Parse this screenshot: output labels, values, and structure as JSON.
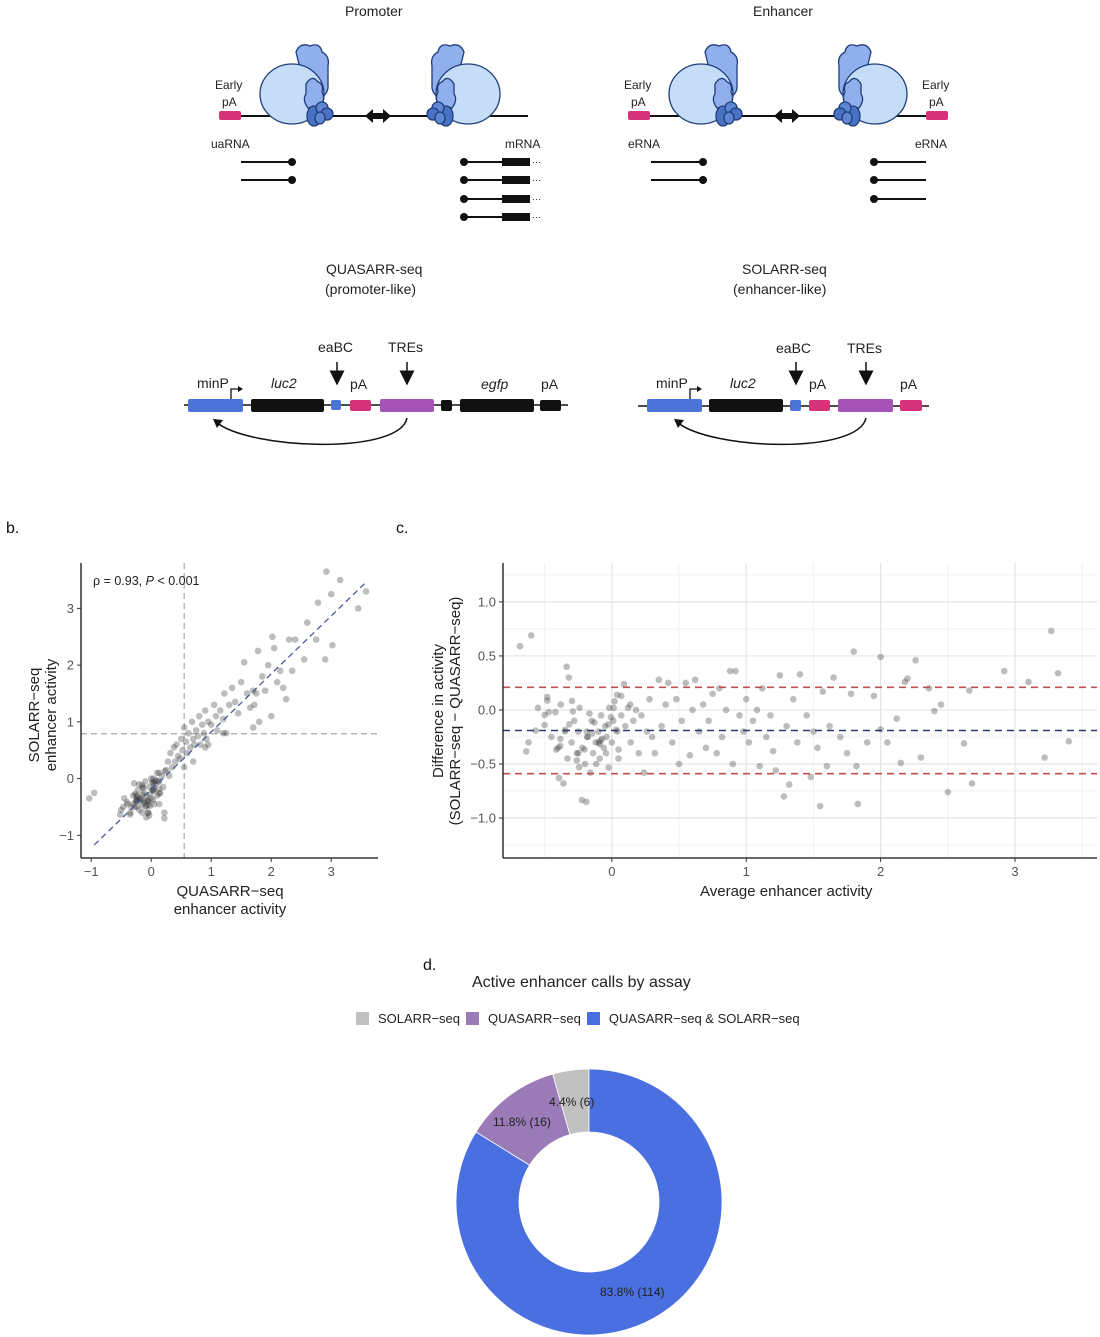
{
  "diagram": {
    "promoter": {
      "title": "Promoter",
      "early_pA": [
        "Early",
        "pA"
      ],
      "left_rna": "uaRNA",
      "right_rna": "mRNA"
    },
    "enhancer": {
      "title": "Enhancer",
      "early_pA": [
        "Early",
        "pA"
      ],
      "left_rna": "eRNA",
      "right_rna": "eRNA"
    },
    "quasarr": {
      "title": "QUASARR-seq",
      "subtitle": "(promoter-like)",
      "labels": {
        "minP": "minP",
        "luc2": "luc2",
        "eaBC": "eaBC",
        "pA1": "pA",
        "TREs": "TREs",
        "egfp": "egfp",
        "pA2": "pA"
      }
    },
    "solarr": {
      "title": "SOLARR-seq",
      "subtitle": "(enhancer-like)",
      "labels": {
        "minP": "minP",
        "luc2": "luc2",
        "eaBC": "eaBC",
        "pA1": "pA",
        "TREs": "TREs",
        "pA2": "pA"
      }
    },
    "colors": {
      "polymerase_light": "#c5ddf7",
      "polymerase_mid": "#8fb0ec",
      "polymerase_dark": "#4a72c4",
      "pA": "#d6337a",
      "minP": "#4c74d8",
      "TREs": "#a653b8",
      "eaBC": "#4c74d8",
      "gene": "#111111"
    }
  },
  "panel_labels": {
    "b": "b.",
    "c": "c.",
    "d": "d."
  },
  "chart_data": [
    {
      "id": "b",
      "type": "scatter",
      "title": "",
      "annotation": {
        "rho": "ρ = 0.93, ",
        "p_italic": "P",
        "p_rest": " < 0.001"
      },
      "xlabel": [
        "QUASARR−seq",
        "enhancer activity"
      ],
      "ylabel": [
        "SOLARR−seq",
        "enhancer activity"
      ],
      "xlim": [
        -1.17,
        3.78
      ],
      "ylim": [
        -1.4,
        3.8
      ],
      "xticks": [
        -1,
        0,
        1,
        2,
        3
      ],
      "xtick_labels": [
        "−1",
        "0",
        "1",
        "2",
        "3"
      ],
      "yticks": [
        -1,
        0,
        1,
        2,
        3
      ],
      "ytick_labels": [
        "−1",
        "0",
        "1",
        "2",
        "3"
      ],
      "vline": 0.55,
      "hline": 0.79,
      "fit_line": {
        "x": [
          -0.95,
          3.58
        ],
        "y": [
          -1.17,
          3.46
        ]
      },
      "point_color": "#333333",
      "fit_color": "#4a5a9a",
      "points": [
        [
          -0.95,
          -0.25
        ],
        [
          -0.5,
          -0.55
        ],
        [
          -0.45,
          -0.35
        ],
        [
          -0.4,
          -0.45
        ],
        [
          -0.35,
          -0.6
        ],
        [
          -0.3,
          -0.3
        ],
        [
          -0.28,
          -0.5
        ],
        [
          -0.25,
          -0.4
        ],
        [
          -0.22,
          -0.2
        ],
        [
          -0.2,
          -0.55
        ],
        [
          -0.18,
          -0.35
        ],
        [
          -0.15,
          -0.45
        ],
        [
          -0.12,
          -0.25
        ],
        [
          -0.1,
          -0.5
        ],
        [
          -0.08,
          -0.3
        ],
        [
          -0.05,
          -0.4
        ],
        [
          -0.03,
          -0.15
        ],
        [
          0.0,
          -0.35
        ],
        [
          0.02,
          -0.2
        ],
        [
          0.05,
          -0.45
        ],
        [
          0.07,
          -0.1
        ],
        [
          0.1,
          -0.3
        ],
        [
          0.12,
          -0.05
        ],
        [
          0.15,
          -0.25
        ],
        [
          0.18,
          0.05
        ],
        [
          0.2,
          -0.15
        ],
        [
          0.22,
          -0.6
        ],
        [
          -0.15,
          -0.6
        ],
        [
          -0.1,
          -0.05
        ],
        [
          -0.05,
          -0.6
        ],
        [
          0.0,
          0.0
        ],
        [
          0.05,
          -0.05
        ],
        [
          0.1,
          0.1
        ],
        [
          -0.2,
          -0.1
        ],
        [
          -0.25,
          -0.3
        ],
        [
          -0.3,
          -0.45
        ],
        [
          -0.12,
          -0.42
        ],
        [
          -0.08,
          -0.48
        ],
        [
          -0.02,
          -0.28
        ],
        [
          0.03,
          -0.38
        ],
        [
          0.25,
          0.15
        ],
        [
          0.28,
          0.3
        ],
        [
          0.3,
          0.05
        ],
        [
          0.32,
          0.45
        ],
        [
          0.35,
          0.2
        ],
        [
          0.38,
          0.55
        ],
        [
          0.4,
          0.3
        ],
        [
          0.42,
          0.6
        ],
        [
          0.45,
          0.4
        ],
        [
          0.48,
          0.35
        ],
        [
          0.5,
          0.7
        ],
        [
          0.52,
          0.5
        ],
        [
          0.55,
          0.9
        ],
        [
          0.55,
          0.2
        ],
        [
          0.58,
          0.65
        ],
        [
          0.6,
          0.45
        ],
        [
          0.62,
          0.8
        ],
        [
          0.65,
          0.55
        ],
        [
          0.68,
          1.0
        ],
        [
          0.7,
          0.7
        ],
        [
          0.72,
          0.6
        ],
        [
          0.75,
          0.85
        ],
        [
          0.78,
          0.75
        ],
        [
          0.8,
          1.1
        ],
        [
          0.82,
          0.6
        ],
        [
          0.85,
          0.95
        ],
        [
          0.88,
          0.8
        ],
        [
          0.9,
          1.2
        ],
        [
          0.92,
          0.7
        ],
        [
          0.95,
          1.0
        ],
        [
          1.0,
          0.95
        ],
        [
          1.05,
          1.3
        ],
        [
          1.08,
          1.1
        ],
        [
          1.1,
          0.85
        ],
        [
          1.15,
          1.2
        ],
        [
          1.2,
          1.05
        ],
        [
          1.22,
          1.5
        ],
        [
          1.25,
          0.8
        ],
        [
          1.3,
          1.3
        ],
        [
          1.35,
          1.6
        ],
        [
          1.4,
          1.35
        ],
        [
          1.45,
          1.15
        ],
        [
          1.5,
          1.7
        ],
        [
          1.55,
          2.05
        ],
        [
          1.6,
          1.5
        ],
        [
          1.65,
          1.25
        ],
        [
          1.7,
          1.55
        ],
        [
          1.72,
          1.3
        ],
        [
          1.75,
          1.5
        ],
        [
          1.78,
          2.25
        ],
        [
          1.8,
          1.0
        ],
        [
          1.85,
          1.8
        ],
        [
          1.9,
          1.55
        ],
        [
          1.95,
          2.0
        ],
        [
          2.0,
          1.1
        ],
        [
          2.02,
          2.5
        ],
        [
          2.05,
          2.3
        ],
        [
          2.1,
          1.7
        ],
        [
          2.15,
          1.9
        ],
        [
          2.2,
          1.6
        ],
        [
          2.25,
          1.4
        ],
        [
          2.3,
          2.45
        ],
        [
          2.35,
          1.9
        ],
        [
          2.4,
          2.45
        ],
        [
          2.55,
          2.1
        ],
        [
          2.6,
          2.75
        ],
        [
          2.75,
          2.45
        ],
        [
          2.78,
          3.1
        ],
        [
          2.9,
          2.1
        ],
        [
          2.92,
          3.65
        ],
        [
          3.0,
          3.25
        ],
        [
          3.02,
          2.35
        ],
        [
          3.15,
          3.5
        ],
        [
          3.45,
          3.0
        ],
        [
          3.58,
          3.3
        ],
        [
          1.7,
          0.9
        ],
        [
          1.2,
          0.8
        ],
        [
          0.7,
          0.3
        ],
        [
          0.9,
          0.55
        ],
        [
          0.95,
          0.6
        ]
      ]
    },
    {
      "id": "c",
      "type": "scatter",
      "title": "",
      "xlabel": "Average enhancer activity",
      "ylabel": [
        "Difference in activity",
        "(SOLARR−seq − QUASARR−seq)"
      ],
      "xlim": [
        -0.81,
        3.61
      ],
      "ylim": [
        -1.37,
        1.36
      ],
      "xticks": [
        0,
        1,
        2,
        3
      ],
      "xtick_labels": [
        "0",
        "1",
        "2",
        "3"
      ],
      "yticks": [
        -1.0,
        -0.5,
        0.0,
        0.5,
        1.0
      ],
      "ytick_labels": [
        "−1.0",
        "−0.5",
        "0.0",
        "0.5",
        "1.0"
      ],
      "grid": true,
      "hlines": [
        {
          "y": 0.21,
          "color": "#c0504d",
          "name": "upper-limit-line"
        },
        {
          "y": -0.19,
          "color": "#2b3a67",
          "name": "mean-difference-line"
        },
        {
          "y": -0.59,
          "color": "#c0504d",
          "name": "lower-limit-line"
        }
      ],
      "point_color": "#333333",
      "points": [
        [
          -0.6,
          0.69
        ],
        [
          -0.62,
          -0.3
        ],
        [
          -0.55,
          0.02
        ],
        [
          -0.5,
          -0.14
        ],
        [
          -0.48,
          0.12
        ],
        [
          -0.45,
          -0.25
        ],
        [
          -0.42,
          -0.02
        ],
        [
          -0.4,
          -0.35
        ],
        [
          -0.38,
          0.05
        ],
        [
          -0.36,
          -0.68
        ],
        [
          -0.35,
          -0.2
        ],
        [
          -0.33,
          -0.45
        ],
        [
          -0.32,
          0.3
        ],
        [
          -0.3,
          -0.3
        ],
        [
          -0.28,
          -0.1
        ],
        [
          -0.26,
          -0.4
        ],
        [
          -0.25,
          -0.2
        ],
        [
          -0.24,
          0.02
        ],
        [
          -0.22,
          -0.35
        ],
        [
          -0.2,
          -0.5
        ],
        [
          -0.19,
          -0.85
        ],
        [
          -0.18,
          -0.25
        ],
        [
          -0.16,
          -0.58
        ],
        [
          -0.15,
          -0.1
        ],
        [
          -0.14,
          -0.4
        ],
        [
          -0.12,
          -0.3
        ],
        [
          -0.1,
          -0.2
        ],
        [
          -0.09,
          -0.45
        ],
        [
          -0.08,
          -0.05
        ],
        [
          -0.06,
          -0.35
        ],
        [
          -0.05,
          -0.15
        ],
        [
          -0.04,
          -0.25
        ],
        [
          -0.02,
          0.02
        ],
        [
          0.0,
          -0.3
        ],
        [
          0.01,
          -0.1
        ],
        [
          0.02,
          0.08
        ],
        [
          0.04,
          -0.2
        ],
        [
          0.05,
          -0.45
        ],
        [
          0.07,
          -0.05
        ],
        [
          0.09,
          0.24
        ],
        [
          0.1,
          -0.15
        ],
        [
          0.12,
          0.02
        ],
        [
          0.14,
          -0.3
        ],
        [
          0.16,
          -0.1
        ],
        [
          0.18,
          0.0
        ],
        [
          0.2,
          -0.4
        ],
        [
          0.22,
          -0.05
        ],
        [
          0.24,
          -0.58
        ],
        [
          0.26,
          -0.2
        ],
        [
          0.28,
          0.1
        ],
        [
          0.3,
          -0.25
        ],
        [
          0.32,
          -0.4
        ],
        [
          0.35,
          0.28
        ],
        [
          0.37,
          -0.15
        ],
        [
          0.4,
          0.05
        ],
        [
          0.42,
          0.25
        ],
        [
          0.45,
          -0.3
        ],
        [
          0.48,
          0.1
        ],
        [
          0.5,
          -0.5
        ],
        [
          0.52,
          -0.1
        ],
        [
          0.55,
          0.25
        ],
        [
          0.58,
          -0.42
        ],
        [
          0.6,
          0.0
        ],
        [
          0.62,
          0.28
        ],
        [
          0.65,
          -0.2
        ],
        [
          0.68,
          0.05
        ],
        [
          0.7,
          -0.35
        ],
        [
          0.72,
          -0.1
        ],
        [
          0.75,
          0.15
        ],
        [
          0.78,
          -0.4
        ],
        [
          0.8,
          0.2
        ],
        [
          0.82,
          -0.25
        ],
        [
          0.85,
          0.0
        ],
        [
          0.88,
          0.36
        ],
        [
          0.9,
          -0.5
        ],
        [
          0.92,
          0.36
        ],
        [
          0.95,
          -0.05
        ],
        [
          0.98,
          -0.2
        ],
        [
          1.0,
          0.1
        ],
        [
          1.02,
          -0.3
        ],
        [
          1.05,
          -0.1
        ],
        [
          1.08,
          0.0
        ],
        [
          1.1,
          -0.52
        ],
        [
          1.12,
          0.2
        ],
        [
          1.15,
          -0.25
        ],
        [
          1.18,
          -0.05
        ],
        [
          1.2,
          -0.38
        ],
        [
          1.22,
          -0.56
        ],
        [
          1.25,
          0.32
        ],
        [
          1.28,
          -0.8
        ],
        [
          1.3,
          -0.15
        ],
        [
          1.32,
          -0.69
        ],
        [
          1.35,
          0.1
        ],
        [
          1.38,
          -0.3
        ],
        [
          1.4,
          0.33
        ],
        [
          1.45,
          -0.05
        ],
        [
          1.48,
          -0.62
        ],
        [
          1.5,
          -0.2
        ],
        [
          1.53,
          -0.35
        ],
        [
          1.55,
          -0.89
        ],
        [
          1.57,
          0.17
        ],
        [
          1.6,
          -0.52
        ],
        [
          1.62,
          -0.15
        ],
        [
          1.65,
          0.3
        ],
        [
          1.7,
          -0.25
        ],
        [
          1.75,
          -0.4
        ],
        [
          1.78,
          0.15
        ],
        [
          1.8,
          0.54
        ],
        [
          1.82,
          -0.52
        ],
        [
          1.83,
          -0.87
        ],
        [
          1.9,
          -0.3
        ],
        [
          1.95,
          0.13
        ],
        [
          2.0,
          0.49
        ],
        [
          2.0,
          -0.18
        ],
        [
          2.05,
          -0.3
        ],
        [
          2.12,
          -0.08
        ],
        [
          2.15,
          -0.49
        ],
        [
          2.18,
          0.26
        ],
        [
          2.2,
          0.29
        ],
        [
          2.26,
          0.46
        ],
        [
          2.3,
          -0.44
        ],
        [
          2.36,
          0.2
        ],
        [
          2.4,
          -0.01
        ],
        [
          2.45,
          0.05
        ],
        [
          2.5,
          -0.76
        ],
        [
          2.62,
          -0.31
        ],
        [
          2.66,
          0.18
        ],
        [
          2.68,
          -0.68
        ],
        [
          2.92,
          0.36
        ],
        [
          3.1,
          0.26
        ],
        [
          3.22,
          -0.44
        ],
        [
          3.27,
          0.73
        ],
        [
          3.32,
          0.34
        ],
        [
          3.4,
          -0.29
        ]
      ]
    },
    {
      "id": "d",
      "type": "pie",
      "title": "Active enhancer calls by assay",
      "donut": true,
      "legend_position": "top",
      "categories": [
        "SOLARR−seq",
        "QUASARR−seq",
        "QUASARR−seq & SOLARR−seq"
      ],
      "counts": [
        6,
        16,
        114
      ],
      "percent_labels": [
        "4.4% (6)",
        "11.8% (16)",
        "83.8% (114)"
      ],
      "colors": [
        "#c0c0c0",
        "#9a7bb8",
        "#4a6fe0"
      ]
    }
  ]
}
